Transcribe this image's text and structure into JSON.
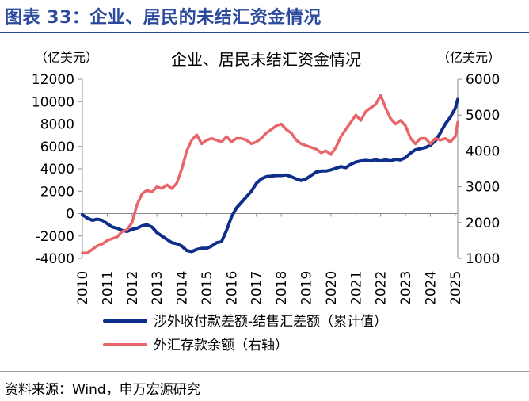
{
  "figure": {
    "title": "图表 33：企业、居民的未结汇资金情况",
    "source": "资料来源：Wind，申万宏源研究"
  },
  "colors": {
    "title": "#2b4a9e",
    "series_blue": "#0e2e8c",
    "series_red": "#e8666a",
    "axis": "#8c8c8c"
  },
  "chart_data": {
    "type": "line",
    "title": "企业、居民未结汇资金情况",
    "left_axis": {
      "unit": "（亿美元）",
      "ylim": [
        -4000,
        12000
      ],
      "ticks": [
        "12000",
        "10000",
        "8000",
        "6000",
        "4000",
        "2000",
        "0",
        "-2000",
        "-4000"
      ],
      "tick_values": [
        12000,
        10000,
        8000,
        6000,
        4000,
        2000,
        0,
        -2000,
        -4000
      ]
    },
    "right_axis": {
      "unit": "（亿美元）",
      "ylim": [
        1000,
        6000
      ],
      "ticks": [
        "6000",
        "5000",
        "4000",
        "3000",
        "2000",
        "1000"
      ],
      "tick_values": [
        6000,
        5000,
        4000,
        3000,
        2000,
        1000
      ]
    },
    "x_axis": {
      "xlim": [
        2010,
        2025.1
      ],
      "ticks": [
        "2010",
        "2011",
        "2012",
        "2013",
        "2014",
        "2015",
        "2016",
        "2017",
        "2018",
        "2019",
        "2020",
        "2021",
        "2022",
        "2023",
        "2024",
        "2025"
      ],
      "tick_values": [
        2010,
        2011,
        2012,
        2013,
        2014,
        2015,
        2016,
        2017,
        2018,
        2019,
        2020,
        2021,
        2022,
        2023,
        2024,
        2025
      ]
    },
    "grid": false,
    "legend": "bottom",
    "series": [
      {
        "name": "涉外收付款差额-结售汇差额（累计值）",
        "axis": "left",
        "color": "#0e2e8c",
        "x": [
          2010.0,
          2010.2,
          2010.4,
          2010.6,
          2010.8,
          2011.0,
          2011.2,
          2011.4,
          2011.6,
          2011.8,
          2012.0,
          2012.2,
          2012.4,
          2012.6,
          2012.8,
          2013.0,
          2013.2,
          2013.4,
          2013.6,
          2013.8,
          2014.0,
          2014.2,
          2014.4,
          2014.6,
          2014.8,
          2015.0,
          2015.2,
          2015.4,
          2015.6,
          2015.8,
          2016.0,
          2016.2,
          2016.4,
          2016.6,
          2016.8,
          2017.0,
          2017.2,
          2017.4,
          2017.6,
          2017.8,
          2018.0,
          2018.2,
          2018.4,
          2018.6,
          2018.8,
          2019.0,
          2019.2,
          2019.4,
          2019.6,
          2019.8,
          2020.0,
          2020.2,
          2020.4,
          2020.6,
          2020.8,
          2021.0,
          2021.2,
          2021.4,
          2021.6,
          2021.8,
          2022.0,
          2022.2,
          2022.4,
          2022.6,
          2022.8,
          2023.0,
          2023.2,
          2023.4,
          2023.6,
          2023.8,
          2024.0,
          2024.2,
          2024.4,
          2024.6,
          2024.8,
          2025.0,
          2025.1
        ],
        "values": [
          -100,
          -400,
          -600,
          -500,
          -600,
          -900,
          -1200,
          -1300,
          -1500,
          -1600,
          -1400,
          -1300,
          -1100,
          -1000,
          -1200,
          -1700,
          -2000,
          -2300,
          -2600,
          -2700,
          -2900,
          -3300,
          -3400,
          -3200,
          -3100,
          -3100,
          -2900,
          -2600,
          -2500,
          -1500,
          -300,
          500,
          1000,
          1500,
          2000,
          2700,
          3100,
          3300,
          3350,
          3400,
          3400,
          3450,
          3300,
          3100,
          2950,
          3100,
          3400,
          3700,
          3800,
          3800,
          3900,
          4050,
          4200,
          4100,
          4400,
          4600,
          4700,
          4750,
          4700,
          4800,
          4700,
          4800,
          4700,
          4850,
          4800,
          5000,
          5400,
          5700,
          5800,
          5900,
          6100,
          6500,
          7200,
          8000,
          8600,
          9400,
          10200
        ]
      },
      {
        "name": "外汇存款余额（右轴）",
        "axis": "right",
        "color": "#e8666a",
        "x": [
          2010.0,
          2010.2,
          2010.4,
          2010.6,
          2010.8,
          2011.0,
          2011.2,
          2011.4,
          2011.6,
          2011.8,
          2012.0,
          2012.2,
          2012.4,
          2012.6,
          2012.8,
          2013.0,
          2013.2,
          2013.4,
          2013.6,
          2013.8,
          2014.0,
          2014.2,
          2014.4,
          2014.6,
          2014.8,
          2015.0,
          2015.2,
          2015.4,
          2015.6,
          2015.8,
          2016.0,
          2016.2,
          2016.4,
          2016.6,
          2016.8,
          2017.0,
          2017.2,
          2017.4,
          2017.6,
          2017.8,
          2018.0,
          2018.2,
          2018.4,
          2018.6,
          2018.8,
          2019.0,
          2019.2,
          2019.4,
          2019.6,
          2019.8,
          2020.0,
          2020.2,
          2020.4,
          2020.6,
          2020.8,
          2021.0,
          2021.2,
          2021.4,
          2021.6,
          2021.8,
          2022.0,
          2022.2,
          2022.4,
          2022.6,
          2022.8,
          2023.0,
          2023.2,
          2023.4,
          2023.6,
          2023.8,
          2024.0,
          2024.2,
          2024.4,
          2024.6,
          2024.8,
          2025.0,
          2025.1
        ],
        "values": [
          1150,
          1150,
          1250,
          1350,
          1400,
          1500,
          1550,
          1600,
          1750,
          1800,
          2000,
          2500,
          2800,
          2900,
          2850,
          3000,
          2950,
          3050,
          2950,
          3100,
          3500,
          4000,
          4300,
          4450,
          4200,
          4300,
          4350,
          4300,
          4250,
          4400,
          4250,
          4350,
          4350,
          4300,
          4200,
          4250,
          4350,
          4500,
          4600,
          4700,
          4750,
          4600,
          4500,
          4300,
          4200,
          4150,
          4100,
          4050,
          3950,
          4000,
          3900,
          4100,
          4400,
          4600,
          4800,
          5000,
          4850,
          5100,
          5200,
          5300,
          5550,
          5200,
          4900,
          4750,
          4850,
          4700,
          4350,
          4200,
          4350,
          4350,
          4200,
          4350,
          4300,
          4350,
          4250,
          4400,
          4800
        ]
      }
    ]
  }
}
